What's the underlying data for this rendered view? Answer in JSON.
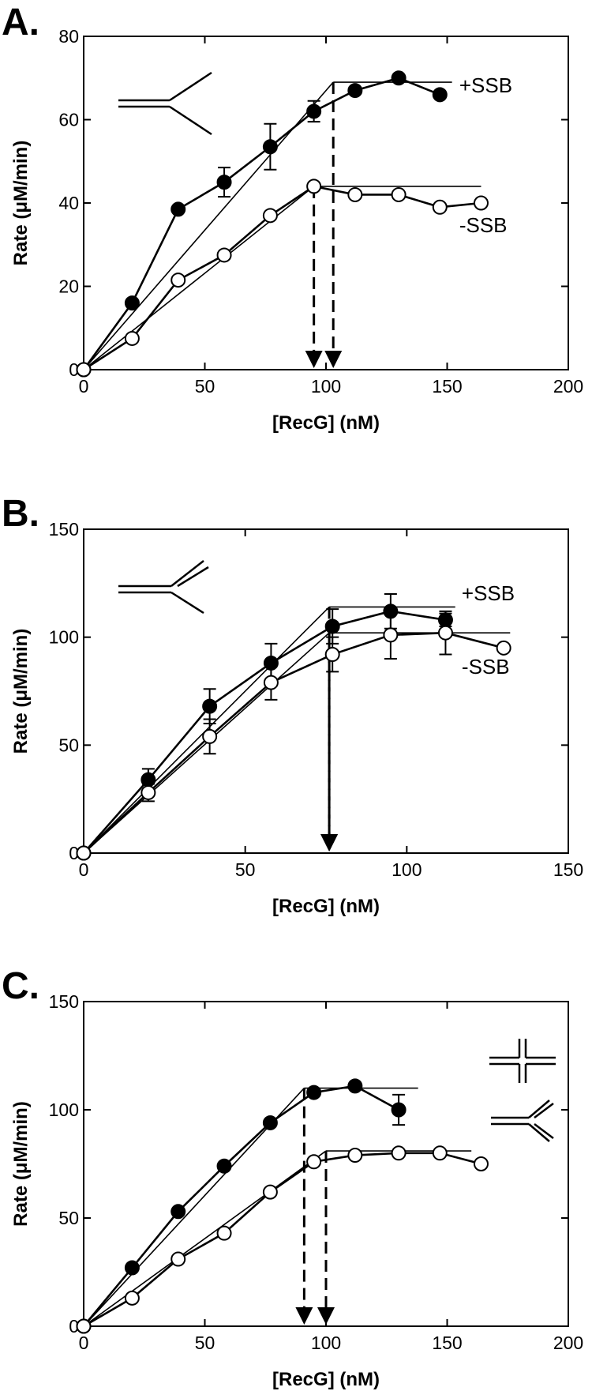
{
  "chart_data": [
    {
      "type": "scatter",
      "panel": "A.",
      "xlabel": "[RecG] (nM)",
      "ylabel": "Rate (μM/min)",
      "xlim": [
        0,
        200
      ],
      "ylim": [
        0,
        80
      ],
      "xticks": [
        "0",
        "50",
        "100",
        "150",
        "200"
      ],
      "yticks": [
        "0",
        "20",
        "40",
        "60",
        "80"
      ],
      "substrate_icon": "fork-icon",
      "series": [
        {
          "name": "+SSB",
          "marker": "filled-circle",
          "x": [
            0,
            20,
            39,
            58,
            77,
            95,
            112,
            130,
            147
          ],
          "y": [
            0,
            16,
            38.5,
            45,
            53.5,
            62,
            67,
            70,
            66
          ],
          "err": [
            0,
            0,
            0,
            3.5,
            5.5,
            2.5,
            0,
            0,
            0
          ],
          "fit": {
            "x": [
              0,
              103,
              152
            ],
            "y": [
              0,
              69,
              69
            ]
          },
          "breakpoint_x": 103
        },
        {
          "name": "-SSB",
          "marker": "open-circle",
          "x": [
            0,
            20,
            39,
            58,
            77,
            95,
            112,
            130,
            147,
            164
          ],
          "y": [
            0,
            7.5,
            21.5,
            27.5,
            37,
            44,
            42,
            42,
            39,
            40
          ],
          "err": [
            0,
            0,
            0,
            0,
            0,
            0,
            0,
            0,
            0,
            0
          ],
          "fit": {
            "x": [
              0,
              95,
              164
            ],
            "y": [
              0,
              44,
              44
            ]
          },
          "breakpoint_x": 95
        }
      ],
      "labels": [
        {
          "text": "+SSB",
          "x": 155,
          "y": 66.5
        },
        {
          "text": "-SSB",
          "x": 155,
          "y": 33
        }
      ]
    },
    {
      "type": "scatter",
      "panel": "B.",
      "xlabel": "[RecG] (nM)",
      "ylabel": "Rate (μM/min)",
      "xlim": [
        0,
        150
      ],
      "ylim": [
        0,
        150
      ],
      "xticks": [
        "0",
        "50",
        "100",
        "150"
      ],
      "yticks": [
        "0",
        "50",
        "100",
        "150"
      ],
      "substrate_icon": "fork-icon",
      "series": [
        {
          "name": "+SSB",
          "marker": "filled-circle",
          "x": [
            0,
            20,
            39,
            58,
            77,
            95,
            112
          ],
          "y": [
            0,
            34,
            68,
            88,
            105,
            112,
            108
          ],
          "err": [
            0,
            5,
            8,
            9,
            8,
            8,
            3
          ],
          "fit": {
            "x": [
              0,
              76,
              115
            ],
            "y": [
              0,
              114,
              114
            ]
          },
          "breakpoint_x": 76
        },
        {
          "name": "-SSB",
          "marker": "open-circle",
          "x": [
            0,
            20,
            39,
            58,
            77,
            95,
            112,
            130
          ],
          "y": [
            0,
            28,
            54,
            79,
            92,
            101,
            102,
            95
          ],
          "err": [
            0,
            4,
            8,
            8,
            8,
            11,
            10,
            0
          ],
          "fit": {
            "x": [
              0,
              76,
              132
            ],
            "y": [
              0,
              102,
              102
            ]
          },
          "breakpoint_x": 76
        }
      ],
      "labels": [
        {
          "text": "+SSB",
          "x": 117,
          "y": 117
        },
        {
          "text": "-SSB",
          "x": 117,
          "y": 83
        }
      ]
    },
    {
      "type": "scatter",
      "panel": "C.",
      "xlabel": "[RecG] (nM)",
      "ylabel": "Rate (μM/min)",
      "xlim": [
        0,
        200
      ],
      "ylim": [
        0,
        150
      ],
      "xticks": [
        "0",
        "50",
        "100",
        "150",
        "200"
      ],
      "yticks": [
        "0",
        "50",
        "100",
        "150"
      ],
      "substrate_icons": [
        "holliday-junction-icon",
        "fork-icon"
      ],
      "series": [
        {
          "name": "Holliday junction",
          "marker": "filled-circle",
          "x": [
            0,
            20,
            39,
            58,
            77,
            95,
            112,
            130
          ],
          "y": [
            0,
            27,
            53,
            74,
            94,
            108,
            111,
            100
          ],
          "err": [
            0,
            0,
            0,
            0,
            0,
            0,
            0,
            7
          ],
          "fit": {
            "x": [
              0,
              91,
              138
            ],
            "y": [
              0,
              110,
              110
            ]
          },
          "breakpoint_x": 91
        },
        {
          "name": "Fork",
          "marker": "open-circle",
          "x": [
            0,
            20,
            39,
            58,
            77,
            95,
            112,
            130,
            147,
            164
          ],
          "y": [
            0,
            13,
            31,
            43,
            62,
            76,
            79,
            80,
            80,
            75
          ],
          "err": [
            0,
            0,
            0,
            0,
            0,
            0,
            0,
            0,
            0,
            0
          ],
          "fit": {
            "x": [
              0,
              100,
              160
            ],
            "y": [
              0,
              81,
              81
            ]
          },
          "breakpoint_x": 100
        }
      ],
      "labels": []
    }
  ]
}
